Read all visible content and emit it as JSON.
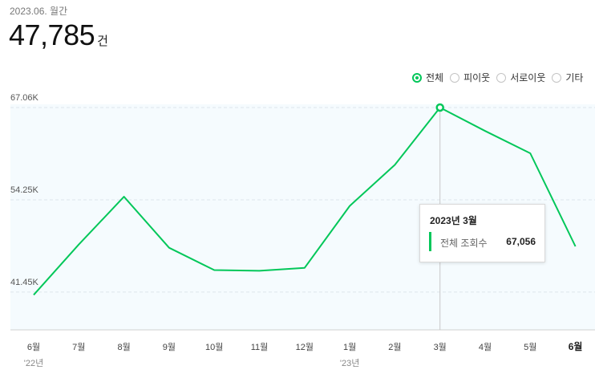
{
  "summary": {
    "period": "2023.06. 월간",
    "total": "47,785",
    "unit": "건"
  },
  "filters": [
    {
      "label": "전체",
      "checked": true
    },
    {
      "label": "피이웃",
      "checked": false
    },
    {
      "label": "서로이웃",
      "checked": false
    },
    {
      "label": "기타",
      "checked": false
    }
  ],
  "colors": {
    "line": "#03c75a",
    "plot_background": "#f5fbfe"
  },
  "chart_data": {
    "type": "line",
    "categories": [
      "6월",
      "7월",
      "8월",
      "9월",
      "10월",
      "11월",
      "12월",
      "1월",
      "2월",
      "3월",
      "4월",
      "5월",
      "6월"
    ],
    "year_labels": [
      {
        "index": 0,
        "label": "'22년"
      },
      {
        "index": 7,
        "label": "'23년"
      }
    ],
    "values": [
      41060,
      48050,
      54680,
      47600,
      44500,
      44400,
      44800,
      53400,
      59100,
      67056,
      63800,
      60700,
      47785
    ],
    "yticks": [
      {
        "value": 41450,
        "label": "41.45K"
      },
      {
        "value": 54250,
        "label": "54.25K"
      },
      {
        "value": 67060,
        "label": "67.06K"
      }
    ],
    "ylim": [
      36200,
      67500
    ],
    "highlight_index": 9,
    "bold_tick_index": 12,
    "grid": true
  },
  "tooltip": {
    "title": "2023년 3월",
    "label": "전체 조회수",
    "value": "67,056"
  }
}
